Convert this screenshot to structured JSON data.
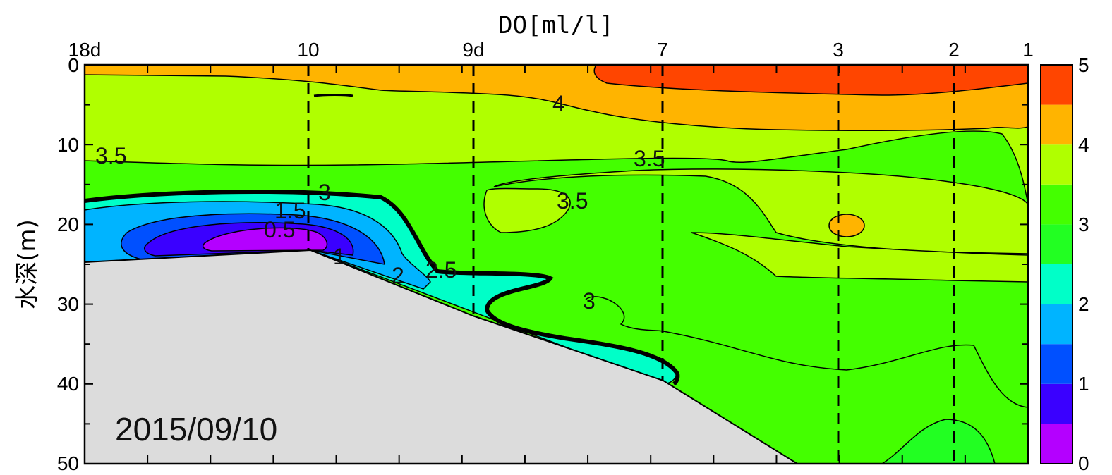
{
  "chart_data": {
    "type": "heatmap",
    "title": "DO[ml/l]",
    "ylabel": "水深(m)",
    "date": "2015/09/10",
    "ylim": [
      0,
      50
    ],
    "y_ticks": [
      "0",
      "10",
      "20",
      "30",
      "40",
      "50"
    ],
    "stations": [
      "18d",
      "10",
      "9d",
      "7",
      "3",
      "2",
      "1"
    ],
    "colorbar": {
      "ticks": [
        "0",
        "1",
        "2",
        "3",
        "4",
        "5"
      ],
      "levels": [
        0,
        0.5,
        1,
        1.5,
        2,
        2.5,
        3,
        3.5,
        4,
        4.5,
        5
      ],
      "colors": [
        "#b400ff",
        "#3a00ff",
        "#0050ff",
        "#00b4ff",
        "#00ffc8",
        "#22ff22",
        "#44ff00",
        "#b0ff00",
        "#ffb400",
        "#ff4500"
      ]
    },
    "contour_labels": [
      "4",
      "3.5",
      "3.5",
      "3.5",
      "3",
      "3",
      "2.5",
      "2",
      "1.5",
      "1",
      "0.5"
    ],
    "seabed_color": "#dcdcdc",
    "bold_contour_value": 2.5
  }
}
